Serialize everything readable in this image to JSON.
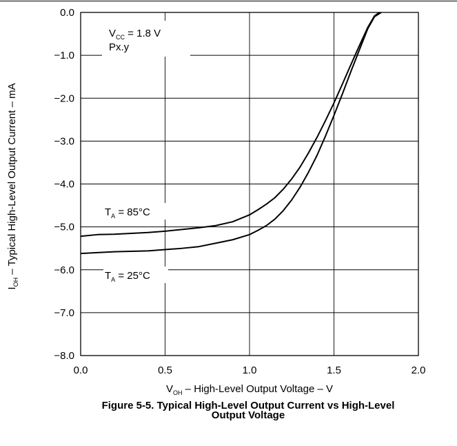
{
  "chart_data": {
    "type": "line",
    "title": "Figure 5-5. Typical High-Level Output Current vs High-Level Output Voltage",
    "title_lines": [
      "Figure 5-5. Typical High-Level Output Current vs High-Level",
      "Output Voltage"
    ],
    "xlabel": {
      "main": "V",
      "sub": "OH",
      "rest": " – High-Level Output Voltage – V"
    },
    "ylabel": {
      "main": "I",
      "sub": "OH",
      "rest": " – Typical High-Level Output Current – mA"
    },
    "xlim": [
      0.0,
      2.0
    ],
    "ylim": [
      -8.0,
      0.0
    ],
    "x_ticks": [
      0.0,
      0.5,
      1.0,
      1.5,
      2.0
    ],
    "x_tick_labels": [
      "0.0",
      "0.5",
      "1.0",
      "1.5",
      "2.0"
    ],
    "y_ticks": [
      0.0,
      -1.0,
      -2.0,
      -3.0,
      -4.0,
      -5.0,
      -6.0,
      -7.0,
      -8.0
    ],
    "y_tick_labels": [
      "0.0",
      "−1.0",
      "−2.0",
      "−3.0",
      "−4.0",
      "−5.0",
      "−6.0",
      "−7.0",
      "−8.0"
    ],
    "grid": true,
    "legend": "none",
    "annotations": {
      "condition1": {
        "main": "V",
        "sub": "CC",
        "rest": " = 1.8 V"
      },
      "condition2": "Px.y",
      "label_85": {
        "main": "T",
        "sub": "A",
        "rest": " = 85°C"
      },
      "label_25": {
        "main": "T",
        "sub": "A",
        "rest": " = 25°C"
      }
    },
    "series": [
      {
        "name": "T_A = 85°C",
        "x": [
          0.0,
          0.1,
          0.2,
          0.3,
          0.4,
          0.5,
          0.6,
          0.7,
          0.8,
          0.9,
          1.0,
          1.05,
          1.1,
          1.15,
          1.2,
          1.25,
          1.3,
          1.35,
          1.4,
          1.45,
          1.5,
          1.55,
          1.6,
          1.65,
          1.7,
          1.74,
          1.77
        ],
        "y": [
          -5.22,
          -5.18,
          -5.17,
          -5.15,
          -5.13,
          -5.1,
          -5.06,
          -5.02,
          -4.97,
          -4.88,
          -4.72,
          -4.6,
          -4.47,
          -4.32,
          -4.12,
          -3.88,
          -3.6,
          -3.27,
          -2.91,
          -2.52,
          -2.11,
          -1.67,
          -1.22,
          -0.78,
          -0.35,
          -0.08,
          0.0
        ]
      },
      {
        "name": "T_A = 25°C",
        "x": [
          0.0,
          0.1,
          0.2,
          0.3,
          0.4,
          0.5,
          0.6,
          0.7,
          0.8,
          0.9,
          1.0,
          1.05,
          1.1,
          1.15,
          1.2,
          1.25,
          1.3,
          1.35,
          1.4,
          1.45,
          1.5,
          1.55,
          1.6,
          1.65,
          1.7,
          1.74,
          1.78
        ],
        "y": [
          -5.62,
          -5.6,
          -5.58,
          -5.57,
          -5.56,
          -5.53,
          -5.5,
          -5.46,
          -5.38,
          -5.3,
          -5.18,
          -5.08,
          -4.97,
          -4.82,
          -4.62,
          -4.37,
          -4.07,
          -3.72,
          -3.33,
          -2.88,
          -2.4,
          -1.9,
          -1.38,
          -0.88,
          -0.38,
          -0.1,
          0.0
        ]
      }
    ]
  }
}
